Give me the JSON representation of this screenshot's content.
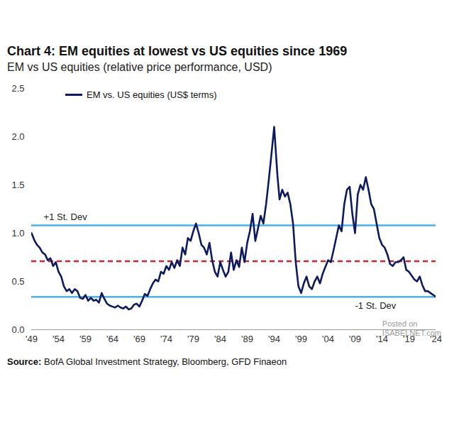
{
  "chart_data": {
    "type": "line",
    "title": "Chart 4: EM equities at lowest vs US equities since 1969",
    "subtitle": "EM vs US equities (relative price performance, USD)",
    "source": "Source: BofA Global Investment Strategy, Bloomberg, GFD Finaeon",
    "watermark": [
      "Posted on",
      "ISABELNET.com"
    ],
    "legend": "top-left",
    "grid": false,
    "x": [
      1949,
      1949.5,
      1950,
      1950.5,
      1951,
      1951.5,
      1952,
      1952.5,
      1953,
      1953.5,
      1954,
      1954.5,
      1955,
      1955.5,
      1956,
      1956.5,
      1957,
      1957.5,
      1958,
      1958.5,
      1959,
      1959.5,
      1960,
      1960.5,
      1961,
      1961.5,
      1962,
      1962.5,
      1963,
      1963.5,
      1964,
      1964.5,
      1965,
      1965.5,
      1966,
      1966.5,
      1967,
      1967.5,
      1968,
      1968.5,
      1969,
      1969.5,
      1970,
      1970.5,
      1971,
      1971.5,
      1972,
      1972.5,
      1973,
      1973.5,
      1974,
      1974.5,
      1975,
      1975.5,
      1976,
      1976.5,
      1977,
      1977.5,
      1978,
      1978.5,
      1979,
      1979.5,
      1980,
      1980.5,
      1981,
      1981.5,
      1982,
      1982.5,
      1983,
      1983.5,
      1984,
      1984.5,
      1985,
      1985.5,
      1986,
      1986.5,
      1987,
      1987.5,
      1988,
      1988.5,
      1989,
      1989.5,
      1990,
      1990.5,
      1991,
      1991.5,
      1992,
      1992.5,
      1993,
      1993.5,
      1994,
      1994.3,
      1994.6,
      1995,
      1995.5,
      1996,
      1996.5,
      1997,
      1997.5,
      1998,
      1998.5,
      1999,
      1999.5,
      2000,
      2000.5,
      2001,
      2001.5,
      2002,
      2002.5,
      2003,
      2003.5,
      2004,
      2004.5,
      2005,
      2005.5,
      2006,
      2006.5,
      2007,
      2007.5,
      2008,
      2008.5,
      2009,
      2009.5,
      2010,
      2010.5,
      2011,
      2011.5,
      2012,
      2012.5,
      2013,
      2013.5,
      2014,
      2014.5,
      2015,
      2015.5,
      2016,
      2016.5,
      2017,
      2017.5,
      2018,
      2018.5,
      2019,
      2019.5,
      2020,
      2020.5,
      2021,
      2021.5,
      2022,
      2022.5,
      2023,
      2023.5,
      2024
    ],
    "series": [
      {
        "name": "EM vs. US equities (US$ terms)",
        "color": "#0d1b5e",
        "type": "line",
        "line_style": "solid",
        "values": [
          1.0,
          0.93,
          0.88,
          0.85,
          0.8,
          0.78,
          0.72,
          0.74,
          0.66,
          0.7,
          0.6,
          0.55,
          0.45,
          0.4,
          0.42,
          0.38,
          0.42,
          0.4,
          0.33,
          0.32,
          0.36,
          0.3,
          0.33,
          0.3,
          0.31,
          0.28,
          0.38,
          0.32,
          0.27,
          0.25,
          0.24,
          0.23,
          0.25,
          0.23,
          0.22,
          0.24,
          0.21,
          0.22,
          0.26,
          0.27,
          0.24,
          0.3,
          0.37,
          0.35,
          0.42,
          0.48,
          0.52,
          0.5,
          0.6,
          0.58,
          0.66,
          0.62,
          0.7,
          0.64,
          0.72,
          0.66,
          0.85,
          0.78,
          0.95,
          0.92,
          1.02,
          1.1,
          1.0,
          0.88,
          0.85,
          0.78,
          0.9,
          0.72,
          0.6,
          0.55,
          0.7,
          0.62,
          0.55,
          0.6,
          0.8,
          0.62,
          0.72,
          0.65,
          0.85,
          0.7,
          0.9,
          1.02,
          1.2,
          0.92,
          1.05,
          1.18,
          1.1,
          1.3,
          1.55,
          1.82,
          2.1,
          1.85,
          1.6,
          1.35,
          1.45,
          1.38,
          1.42,
          1.3,
          1.1,
          0.7,
          0.45,
          0.38,
          0.48,
          0.55,
          0.45,
          0.42,
          0.5,
          0.55,
          0.48,
          0.58,
          0.65,
          0.72,
          0.7,
          0.82,
          0.95,
          1.08,
          1.02,
          1.3,
          1.45,
          1.48,
          1.2,
          1.0,
          1.4,
          1.5,
          1.45,
          1.58,
          1.45,
          1.3,
          1.25,
          1.1,
          0.95,
          0.88,
          0.85,
          0.78,
          0.68,
          0.66,
          0.7,
          0.7,
          0.72,
          0.75,
          0.62,
          0.6,
          0.56,
          0.52,
          0.5,
          0.55,
          0.46,
          0.4,
          0.4,
          0.38,
          0.36,
          0.34
        ]
      }
    ],
    "reference_lines": [
      {
        "value": 1.08,
        "label": "+1 St. Dev",
        "color": "#4db2ec",
        "line_style": "solid"
      },
      {
        "value": 0.71,
        "color": "#c8262e",
        "line_style": "dashed"
      },
      {
        "value": 0.34,
        "label": "-1 St. Dev",
        "color": "#4db2ec",
        "line_style": "solid"
      }
    ],
    "xlim": [
      1949,
      2024
    ],
    "xticks": [
      {
        "value": 1949,
        "label": "'49"
      },
      {
        "value": 1954,
        "label": "'54"
      },
      {
        "value": 1959,
        "label": "'59"
      },
      {
        "value": 1964,
        "label": "'64"
      },
      {
        "value": 1969,
        "label": "'69"
      },
      {
        "value": 1974,
        "label": "'74"
      },
      {
        "value": 1979,
        "label": "'79"
      },
      {
        "value": 1984,
        "label": "'84"
      },
      {
        "value": 1989,
        "label": "'89"
      },
      {
        "value": 1994,
        "label": "'94"
      },
      {
        "value": 1999,
        "label": "'99"
      },
      {
        "value": 2004,
        "label": "'04"
      },
      {
        "value": 2009,
        "label": "'09"
      },
      {
        "value": 2014,
        "label": "'14"
      },
      {
        "value": 2019,
        "label": "'19"
      },
      {
        "value": 2024,
        "label": "'24"
      }
    ],
    "ylim": [
      0,
      2.5
    ],
    "yticks": [
      {
        "value": 0,
        "label": "0.0"
      },
      0.5,
      {
        "value": 1,
        "label": "1.0"
      },
      1.5,
      {
        "value": 2,
        "label": "2.0"
      },
      2.5
    ]
  }
}
